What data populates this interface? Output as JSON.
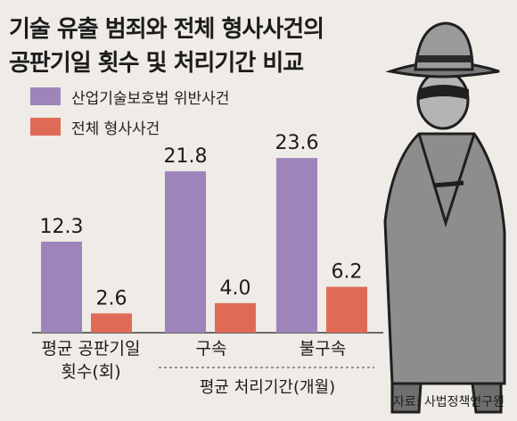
{
  "title_line1": "기술 유출 범죄와 전체 형사사건의",
  "title_line2": "공판기일 횟수 및 처리기간 비교",
  "source": "자료: 사법정책연구원",
  "colors": {
    "series1": "#9d85bb",
    "series2": "#df6b57",
    "background": "#efebe6"
  },
  "chart_data": {
    "type": "bar",
    "categories": [
      "평균 공판기일\n횟수(회)",
      "구속",
      "불구속"
    ],
    "group_label": "평균 처리기간(개월)",
    "series": [
      {
        "name": "산업기술보호법 위반사건",
        "values": [
          12.3,
          21.8,
          23.6
        ]
      },
      {
        "name": "전체 형사사건",
        "values": [
          2.6,
          4.0,
          6.2
        ]
      }
    ],
    "value_labels": [
      [
        "12.3",
        "21.8",
        "23.6"
      ],
      [
        "2.6",
        "4.0",
        "6.2"
      ]
    ],
    "legend_position": "top-left",
    "grid": false
  }
}
